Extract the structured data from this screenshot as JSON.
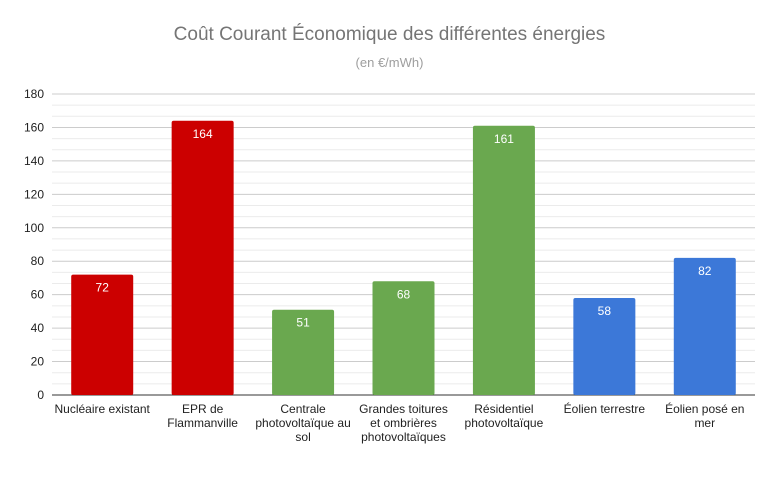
{
  "chart_data": {
    "type": "bar",
    "title": "Coût Courant Économique des différentes énergies",
    "subtitle": "(en €/mWh)",
    "xlabel": "",
    "ylabel": "",
    "categories": [
      "Nucléaire existant",
      "EPR de Flammanville",
      "Centrale photovoltaïque au sol",
      "Grandes toitures et ombrières photovoltaïques",
      "Résidentiel photovoltaïque",
      "Éolien terrestre",
      "Éolien posé en mer"
    ],
    "values": [
      72,
      164,
      51,
      68,
      161,
      58,
      82
    ],
    "colors": [
      "#cc0000",
      "#cc0000",
      "#6aa84f",
      "#6aa84f",
      "#6aa84f",
      "#3c78d8",
      "#3c78d8"
    ],
    "ylim": [
      0,
      180
    ],
    "yticks": [
      0,
      20,
      40,
      60,
      80,
      100,
      120,
      140,
      160,
      180
    ],
    "grid": true,
    "data_labels": true
  }
}
